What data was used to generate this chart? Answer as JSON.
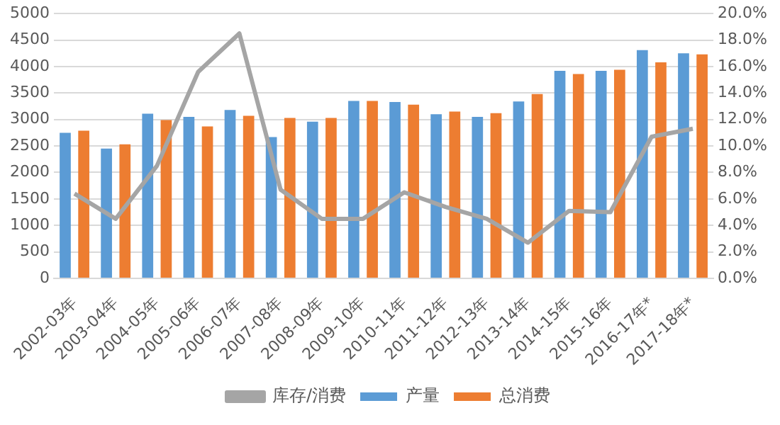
{
  "chart_data": {
    "type": "bar",
    "categories": [
      "2002-03年",
      "2003-04年",
      "2004-05年",
      "2005-06年",
      "2006-07年",
      "2007-08年",
      "2008-09年",
      "2009-10年",
      "2010-11年",
      "2011-12年",
      "2012-13年",
      "2013-14年",
      "2014-15年",
      "2015-16年",
      "2016-17年*",
      "2017-18年*"
    ],
    "series": [
      {
        "name": "产量",
        "color": "#5b9bd5",
        "values": [
          2750,
          2450,
          3110,
          3050,
          3180,
          2670,
          2960,
          3350,
          3330,
          3100,
          3050,
          3340,
          3920,
          3920,
          4310,
          4250
        ]
      },
      {
        "name": "总消费",
        "color": "#ed7d31",
        "values": [
          2790,
          2530,
          2990,
          2870,
          3070,
          3030,
          3030,
          3350,
          3280,
          3150,
          3120,
          3480,
          3860,
          3940,
          4080,
          4230
        ]
      },
      {
        "name": "库存/消费",
        "type": "line",
        "axis": "y2",
        "color": "#a5a5a5",
        "values": [
          6.4,
          4.5,
          8.5,
          15.6,
          18.5,
          6.7,
          4.5,
          4.5,
          6.5,
          5.4,
          4.5,
          2.7,
          5.1,
          5.0,
          10.7,
          11.3
        ]
      }
    ],
    "ylim": [
      0,
      5000
    ],
    "yticks": [
      0,
      500,
      1000,
      1500,
      2000,
      2500,
      3000,
      3500,
      4000,
      4500,
      5000
    ],
    "y2lim": [
      0,
      20
    ],
    "y2ticks": [
      {
        "value": 0,
        "label": "0.0%"
      },
      {
        "value": 2,
        "label": "2.0%"
      },
      {
        "value": 4,
        "label": "4.0%"
      },
      {
        "value": 6,
        "label": "6.0%"
      },
      {
        "value": 8,
        "label": "8.0%"
      },
      {
        "value": 10,
        "label": "10.0%"
      },
      {
        "value": 12,
        "label": "12.0%"
      },
      {
        "value": 14,
        "label": "14.0%"
      },
      {
        "value": 16,
        "label": "16.0%"
      },
      {
        "value": 18,
        "label": "18.0%"
      },
      {
        "value": 20,
        "label": "20.0%"
      }
    ],
    "grid": "y",
    "legend": "bottom",
    "marker": "none"
  }
}
